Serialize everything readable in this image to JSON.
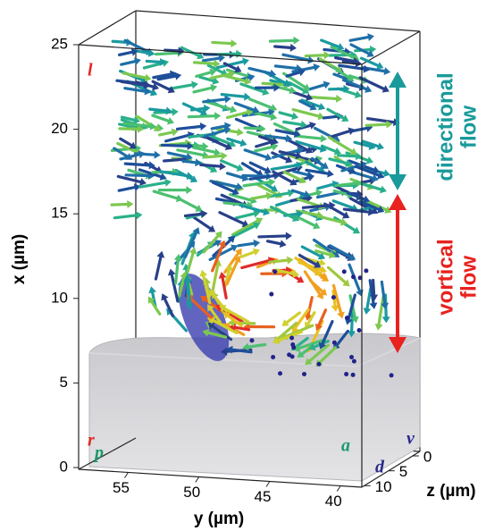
{
  "axes": {
    "x": {
      "label": "x (µm)",
      "ticks": [
        0,
        5,
        10,
        15,
        20,
        25
      ]
    },
    "y": {
      "label": "y (µm)",
      "ticks": [
        55,
        50,
        45,
        40
      ]
    },
    "z": {
      "label": "z (µm)",
      "ticks": [
        0,
        5,
        10
      ]
    }
  },
  "annotations": {
    "l": "l",
    "r": "r",
    "p": "p",
    "a": "a",
    "v": "v",
    "d": "d"
  },
  "flow_labels": {
    "directional": [
      "directional",
      "flow"
    ],
    "vortical": [
      "vortical",
      "flow"
    ]
  }
}
